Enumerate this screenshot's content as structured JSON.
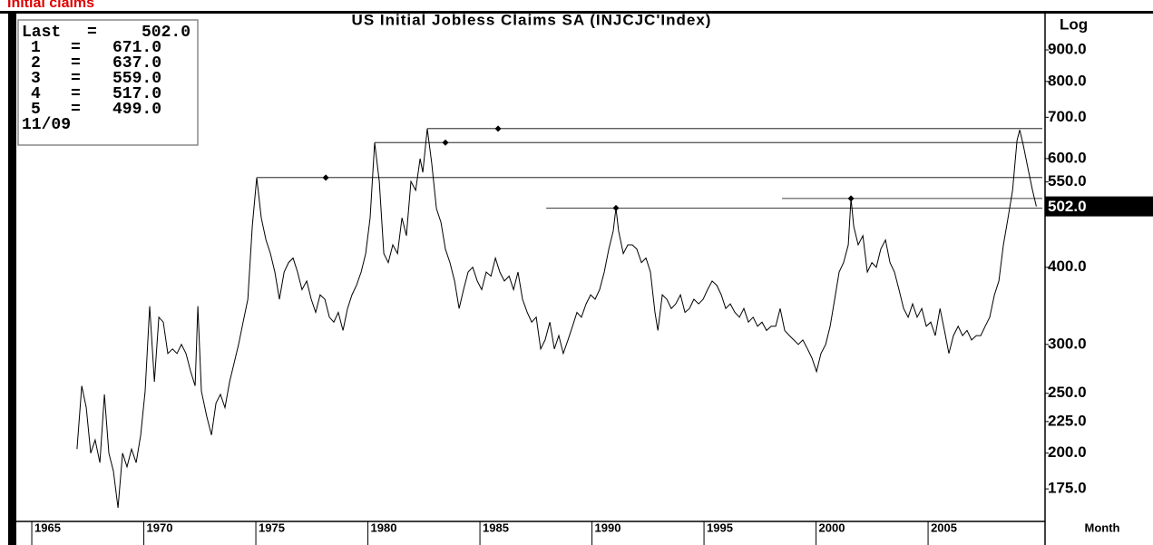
{
  "chart_data": {
    "type": "line",
    "header": "Initial claims",
    "title": "US Initial Jobless Claims SA (INJCJC'Index)",
    "y_label": "Log",
    "x_label": "Month",
    "log_scale": true,
    "color": "#000000",
    "xlim": [
      1964.31,
      2010.22
    ],
    "xticks": [
      1965,
      1970,
      1975,
      1980,
      1985,
      1990,
      1995,
      2000,
      2005
    ],
    "ylim": [
      155,
      1034
    ],
    "yticks": [
      {
        "value": 175,
        "label": "175.0"
      },
      {
        "value": 200,
        "label": "200.0"
      },
      {
        "value": 225,
        "label": "225.0"
      },
      {
        "value": 250,
        "label": "250.0"
      },
      {
        "value": 300,
        "label": "300.0"
      },
      {
        "value": 400,
        "label": "400.0"
      },
      {
        "value": 550,
        "label": "550.0"
      },
      {
        "value": 600,
        "label": "600.0"
      },
      {
        "value": 700,
        "label": "700.0"
      },
      {
        "value": 800,
        "label": "800.0"
      },
      {
        "value": 900,
        "label": "900.0"
      }
    ],
    "last": {
      "name": "Last",
      "value": 502,
      "value_label": "502.0"
    },
    "legend_separator": "=",
    "last_date": "11/09",
    "reference_lines": [
      {
        "name": "1",
        "value": 671,
        "value_label": "671.0",
        "start": 1982.65,
        "marker": 1985.81
      },
      {
        "name": "2",
        "value": 637,
        "value_label": "637.0",
        "start": 1980.3,
        "marker": 1983.46
      },
      {
        "name": "3",
        "value": 559,
        "value_label": "559.0",
        "start": 1975.04,
        "marker": 1978.12
      },
      {
        "name": "4",
        "value": 517,
        "value_label": "517.0",
        "start": 1998.48,
        "marker": 2001.56
      },
      {
        "name": "5",
        "value": 499,
        "value_label": "499.0",
        "start": 1987.96,
        "marker": 1991.07
      }
    ],
    "x": [
      1967.02,
      1967.23,
      1967.43,
      1967.63,
      1967.83,
      1968.04,
      1968.24,
      1968.44,
      1968.64,
      1968.85,
      1969.05,
      1969.25,
      1969.45,
      1969.66,
      1969.86,
      1970.06,
      1970.26,
      1970.47,
      1970.67,
      1970.87,
      1971.07,
      1971.28,
      1971.48,
      1971.68,
      1971.88,
      1972.09,
      1972.29,
      1972.41,
      1972.57,
      1972.81,
      1973.02,
      1973.22,
      1973.42,
      1973.62,
      1973.83,
      1974.03,
      1974.23,
      1974.43,
      1974.64,
      1974.84,
      1975.04,
      1975.24,
      1975.45,
      1975.65,
      1975.85,
      1976.05,
      1976.26,
      1976.46,
      1976.66,
      1976.86,
      1977.06,
      1977.27,
      1977.47,
      1977.67,
      1977.87,
      1978.08,
      1978.28,
      1978.48,
      1978.68,
      1978.89,
      1979.09,
      1979.29,
      1979.49,
      1979.7,
      1979.9,
      1980.1,
      1980.3,
      1980.51,
      1980.71,
      1980.91,
      1981.11,
      1981.32,
      1981.52,
      1981.72,
      1981.92,
      1982.13,
      1982.33,
      1982.45,
      1982.65,
      1982.85,
      1983.06,
      1983.26,
      1983.46,
      1983.66,
      1983.87,
      1984.07,
      1984.27,
      1984.47,
      1984.68,
      1984.88,
      1985.08,
      1985.28,
      1985.49,
      1985.69,
      1985.89,
      1986.09,
      1986.3,
      1986.5,
      1986.7,
      1986.9,
      1987.11,
      1987.31,
      1987.51,
      1987.71,
      1987.91,
      1988.12,
      1988.32,
      1988.52,
      1988.72,
      1988.93,
      1989.13,
      1989.33,
      1989.53,
      1989.74,
      1989.94,
      1990.14,
      1990.34,
      1990.55,
      1990.75,
      1990.95,
      1991.07,
      1991.19,
      1991.4,
      1991.6,
      1991.8,
      1992.0,
      1992.21,
      1992.41,
      1992.61,
      1992.81,
      1992.94,
      1993.14,
      1993.34,
      1993.54,
      1993.74,
      1993.95,
      1994.15,
      1994.35,
      1994.55,
      1994.76,
      1994.96,
      1995.16,
      1995.36,
      1995.57,
      1995.77,
      1995.97,
      1996.17,
      1996.38,
      1996.58,
      1996.78,
      1996.98,
      1997.19,
      1997.39,
      1997.59,
      1997.79,
      1998.0,
      1998.2,
      1998.4,
      1998.6,
      1998.81,
      1999.01,
      1999.21,
      1999.41,
      1999.62,
      1999.82,
      2000.02,
      2000.22,
      2000.43,
      2000.63,
      2000.83,
      2001.03,
      2001.23,
      2001.44,
      2001.56,
      2001.68,
      2001.88,
      2002.09,
      2002.29,
      2002.49,
      2002.69,
      2002.89,
      2003.1,
      2003.3,
      2003.5,
      2003.7,
      2003.91,
      2004.11,
      2004.31,
      2004.51,
      2004.72,
      2004.92,
      2005.12,
      2005.32,
      2005.53,
      2005.73,
      2005.93,
      2006.13,
      2006.34,
      2006.54,
      2006.74,
      2006.94,
      2007.15,
      2007.35,
      2007.55,
      2007.75,
      2007.96,
      2008.16,
      2008.36,
      2008.57,
      2008.77,
      2008.97,
      2009.09,
      2009.25,
      2009.45,
      2009.66,
      2009.83
    ],
    "values": [
      203,
      257,
      237,
      200,
      210,
      193,
      249,
      200,
      187,
      163,
      200,
      190,
      203,
      193,
      214,
      252,
      346,
      261,
      332,
      326,
      290,
      295,
      290,
      300,
      290,
      271,
      257,
      346,
      252,
      229,
      214,
      241,
      249,
      237,
      261,
      280,
      300,
      326,
      355,
      466,
      559,
      481,
      443,
      421,
      393,
      355,
      393,
      407,
      414,
      393,
      368,
      380,
      355,
      338,
      361,
      355,
      332,
      326,
      338,
      316,
      343,
      361,
      374,
      393,
      421,
      481,
      637,
      551,
      421,
      407,
      435,
      421,
      481,
      450,
      551,
      533,
      600,
      570,
      671,
      590,
      498,
      473,
      428,
      407,
      380,
      343,
      368,
      393,
      400,
      380,
      368,
      393,
      387,
      414,
      393,
      380,
      387,
      368,
      393,
      355,
      338,
      326,
      332,
      295,
      305,
      326,
      295,
      310,
      290,
      305,
      321,
      338,
      332,
      349,
      361,
      355,
      368,
      393,
      428,
      458,
      499,
      458,
      421,
      435,
      435,
      428,
      407,
      414,
      393,
      338,
      316,
      361,
      355,
      343,
      349,
      361,
      338,
      343,
      355,
      349,
      355,
      368,
      380,
      374,
      361,
      343,
      349,
      338,
      332,
      343,
      326,
      332,
      321,
      326,
      316,
      321,
      321,
      343,
      316,
      310,
      305,
      300,
      305,
      295,
      285,
      271,
      290,
      300,
      321,
      355,
      393,
      407,
      435,
      517,
      466,
      435,
      450,
      393,
      407,
      400,
      428,
      443,
      407,
      393,
      368,
      343,
      332,
      349,
      332,
      343,
      321,
      326,
      310,
      343,
      316,
      290,
      310,
      321,
      310,
      316,
      305,
      310,
      310,
      321,
      332,
      361,
      380,
      435,
      481,
      533,
      642,
      668,
      631,
      580,
      533,
      502
    ]
  }
}
